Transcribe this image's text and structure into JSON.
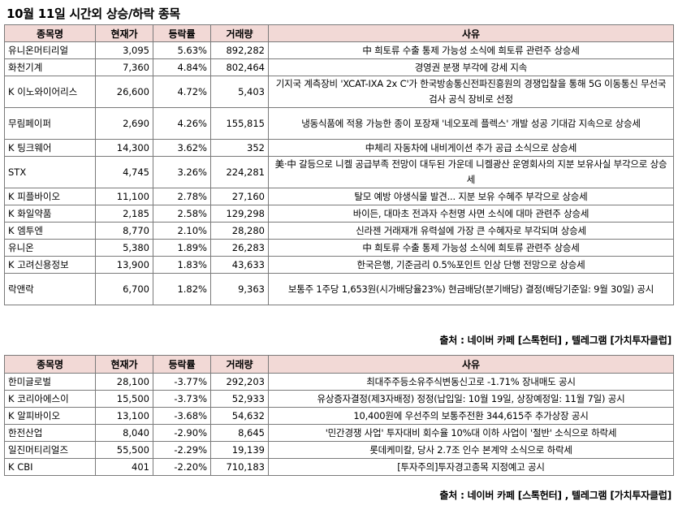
{
  "title": "10월 11일  시간외 상승/하락 종목",
  "headers": [
    "종목명",
    "현재가",
    "등락률",
    "거래량",
    "사유"
  ],
  "rising": [
    {
      "name": "유니온머티리얼",
      "price": "3,095",
      "change": "5.63%",
      "volume": "892,282",
      "reason": "中 희토류 수출 통제 가능성 소식에 희토류 관련주 상승세"
    },
    {
      "name": "화천기계",
      "price": "7,360",
      "change": "4.84%",
      "volume": "802,464",
      "reason": "경영권 분쟁 부각에 강세 지속"
    },
    {
      "name": "K 이노와이어리스",
      "price": "26,600",
      "change": "4.72%",
      "volume": "5,403",
      "reason": "기지국 계측장비 'XCAT-IXA 2x C'가 한국방송통신전파진흥원의 경쟁입찰을 통해 5G 이동통신 무선국 검사 공식 장비로 선정"
    },
    {
      "name": "무림페이퍼",
      "price": "2,690",
      "change": "4.26%",
      "volume": "155,815",
      "reason": "냉동식품에 적용 가능한 종이 포장재 '네오포레 플렉스' 개발 성공 기대감 지속으로 상승세"
    },
    {
      "name": "K 팅크웨어",
      "price": "14,300",
      "change": "3.62%",
      "volume": "352",
      "reason": "中체리 자동차에 내비게이션 추가 공급 소식으로 상승세"
    },
    {
      "name": "STX",
      "price": "4,745",
      "change": "3.26%",
      "volume": "224,281",
      "reason": "美·中 갈등으로 니켈 공급부족 전망이 대두된 가운데 니켈광산 운영회사의 지분 보유사실 부각으로 상승세"
    },
    {
      "name": "K 피플바이오",
      "price": "11,100",
      "change": "2.78%",
      "volume": "27,160",
      "reason": "탈모 예방 야생식물 발견... 지분 보유 수혜주 부각으로 상승세"
    },
    {
      "name": "K 화일약품",
      "price": "2,185",
      "change": "2.58%",
      "volume": "129,298",
      "reason": "바이든, 대마초 전과자 수천명 사면 소식에 대마 관련주 상승세"
    },
    {
      "name": "K 엠투엔",
      "price": "8,770",
      "change": "2.10%",
      "volume": "28,280",
      "reason": "신라젠 거래재개 유력설에 가장 큰 수혜자로 부각되며 상승세"
    },
    {
      "name": "유니온",
      "price": "5,380",
      "change": "1.89%",
      "volume": "26,283",
      "reason": "中 희토류 수출 통제 가능성 소식에 희토류 관련주 상승세"
    },
    {
      "name": "K 고려신용정보",
      "price": "13,900",
      "change": "1.83%",
      "volume": "43,633",
      "reason": "한국은행, 기준금리 0.5%포인트 인상 단행 전망으로 상승세"
    },
    {
      "name": "락앤락",
      "price": "6,700",
      "change": "1.82%",
      "volume": "9,363",
      "reason": "보통주 1주당 1,653원(시가배당율23%) 현금배당(분기배당) 결정(배당기준일: 9월 30일) 공시"
    }
  ],
  "falling": [
    {
      "name": "한미글로벌",
      "price": "28,100",
      "change": "-3.77%",
      "volume": "292,203",
      "reason": "최대주주등소유주식변동신고로 -1.71% 장내매도 공시"
    },
    {
      "name": "K 코리아에스이",
      "price": "15,500",
      "change": "-3.73%",
      "volume": "52,933",
      "reason": "유상증자결정(제3자배정) 정정(납입일: 10월 19일, 상장예정일: 11월 7일) 공시"
    },
    {
      "name": "K 알피바이오",
      "price": "13,100",
      "change": "-3.68%",
      "volume": "54,632",
      "reason": "10,400원에 우선주의 보통주전환 344,615주 추가상장 공시"
    },
    {
      "name": "한전산업",
      "price": "8,040",
      "change": "-2.90%",
      "volume": "8,645",
      "reason": "'민간경쟁 사업' 투자대비 회수율 10%대 이하 사업이 '절반' 소식으로 하락세"
    },
    {
      "name": "일진머티리얼즈",
      "price": "55,500",
      "change": "-2.29%",
      "volume": "19,139",
      "reason": "롯데케미칼, 당사 2.7조 인수 본계약 소식으로 하락세"
    },
    {
      "name": "K CBI",
      "price": "401",
      "change": "-2.20%",
      "volume": "710,183",
      "reason": "[투자주의]투자경고종목 지정예고 공시"
    }
  ],
  "source": "출처 : 네이버 카페 [스톡헌터] , 텔레그램 [가치투자클럽]"
}
